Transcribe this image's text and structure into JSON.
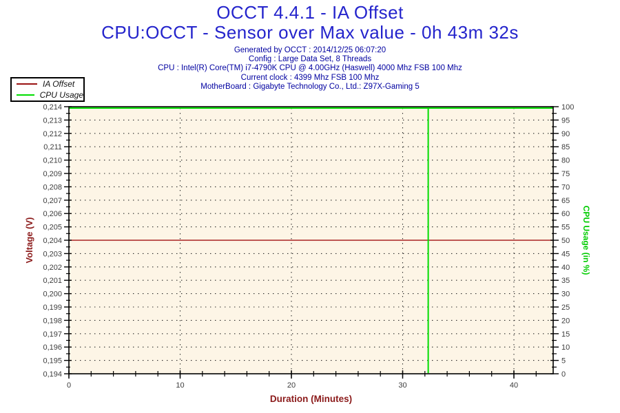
{
  "header": {
    "title": "OCCT 4.4.1 - IA Offset",
    "subtitle": "CPU:OCCT - Sensor over Max value - 0h 43m 32s",
    "title_color": "#2424cc",
    "info_color": "#0000a0",
    "info_lines": [
      "Generated by OCCT : 2014/12/25 06:07:20",
      "Config : Large Data Set, 8 Threads",
      "CPU : Intel(R) Core(TM) i7-4790K CPU @ 4.00GHz (Haswell) 4000 Mhz FSB 100 Mhz",
      "Current clock : 4399 Mhz FSB 100 Mhz",
      "MotherBoard : Gigabyte Technology Co., Ltd.: Z97X-Gaming 5"
    ]
  },
  "legend": {
    "items": [
      {
        "label": "IA Offset",
        "color": "#991111"
      },
      {
        "label": "CPU Usage",
        "color": "#00dd00"
      }
    ]
  },
  "chart_data": {
    "type": "line",
    "title": "OCCT 4.4.1 - IA Offset",
    "subtitle": "CPU:OCCT - Sensor over Max value - 0h 43m 32s",
    "plot_bg": "#fdf5e6",
    "border_color": "#000000",
    "tick_label_color": "#3c3c3c",
    "grid": {
      "show": true,
      "style": "dotted",
      "color": "#222222",
      "x_interval_minutes": 10,
      "y_interval_volts": 0.001
    },
    "x_axis": {
      "label": "Duration (Minutes)",
      "label_color": "#8b1a1a",
      "min": 0,
      "max": 43.53,
      "major_tick": 10,
      "minor_tick": 2,
      "tick_labels": [
        "0",
        "10",
        "20",
        "30",
        "40"
      ]
    },
    "y_axis_left": {
      "label": "Voltage (V)",
      "label_color": "#8b1a1a",
      "min": 0.194,
      "max": 0.214,
      "major_tick": 0.001,
      "minor_tick": 0.0005,
      "decimal_separator": ",",
      "tick_labels": [
        "0,194",
        "0,195",
        "0,196",
        "0,197",
        "0,198",
        "0,199",
        "0,200",
        "0,201",
        "0,202",
        "0,203",
        "0,204",
        "0,205",
        "0,206",
        "0,207",
        "0,208",
        "0,209",
        "0,210",
        "0,211",
        "0,212",
        "0,213",
        "0,214"
      ]
    },
    "y_axis_right": {
      "label": "CPU Usage (in %)",
      "label_color": "#00cc00",
      "min": 0,
      "max": 100,
      "major_tick": 5,
      "minor_tick": 2.5,
      "tick_labels": [
        "0",
        "5",
        "10",
        "15",
        "20",
        "25",
        "30",
        "35",
        "40",
        "45",
        "50",
        "55",
        "60",
        "65",
        "70",
        "75",
        "80",
        "85",
        "90",
        "95",
        "100"
      ]
    },
    "series": [
      {
        "name": "IA Offset",
        "axis": "left",
        "color": "#aa2222",
        "points": [
          [
            0,
            0.204
          ],
          [
            43.53,
            0.204
          ]
        ]
      },
      {
        "name": "CPU Usage",
        "axis": "right",
        "color": "#00dd00",
        "points": [
          [
            0,
            100
          ],
          [
            32.3,
            100
          ],
          [
            32.3,
            0
          ],
          [
            32.3,
            100
          ],
          [
            43.53,
            100
          ]
        ]
      }
    ]
  }
}
